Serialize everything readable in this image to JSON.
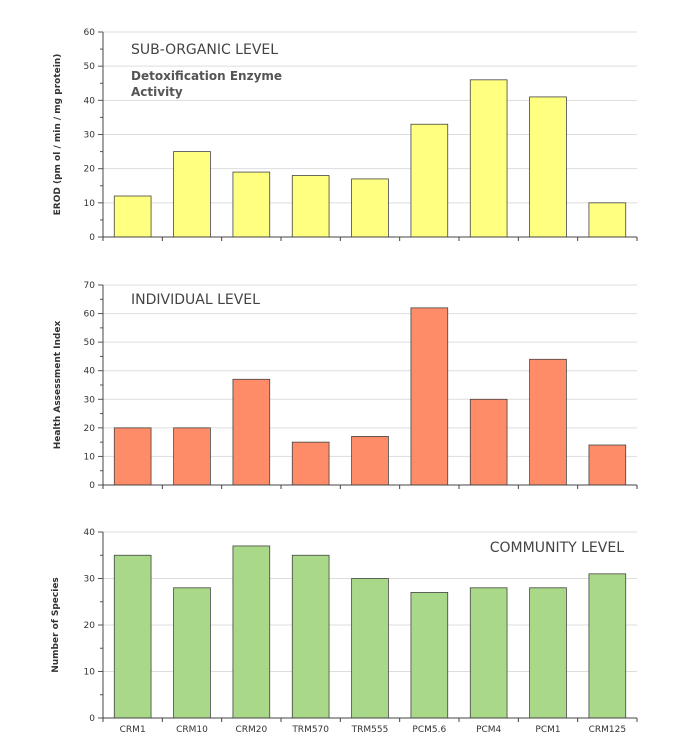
{
  "chart_data": [
    {
      "type": "bar",
      "title": "SUB-ORGANIC LEVEL",
      "subtitle": [
        "Detoxification Enzyme",
        "Activity"
      ],
      "ylabel": "EROD  (pm ol / min / mg protein)",
      "xlabel": "",
      "categories": [
        "CRM1",
        "CRM10",
        "CRM20",
        "TRM570",
        "TRM555",
        "PCM5.6",
        "PCM4",
        "PCM1",
        "CRM125"
      ],
      "values": [
        12,
        25,
        19,
        18,
        17,
        33,
        46,
        41,
        10
      ],
      "ylim": [
        0,
        60
      ],
      "yticks": [
        "0",
        "10",
        "20",
        "30",
        "40",
        "50",
        "60"
      ],
      "grid": true,
      "color": "#ffff80"
    },
    {
      "type": "bar",
      "title": "INDIVIDUAL LEVEL",
      "ylabel": "Health  Assessment  Index",
      "xlabel": "",
      "categories": [
        "CRM1",
        "CRM10",
        "CRM20",
        "TRM570",
        "TRM555",
        "PCM5.6",
        "PCM4",
        "PCM1",
        "CRM125"
      ],
      "values": [
        20,
        20,
        37,
        15,
        17,
        62,
        30,
        44,
        14
      ],
      "ylim": [
        0,
        70
      ],
      "yticks": [
        "0",
        "10",
        "20",
        "30",
        "40",
        "50",
        "60",
        "70"
      ],
      "grid": true,
      "color": "#ff8c69"
    },
    {
      "type": "bar",
      "title": "COMMUNITY LEVEL",
      "ylabel": "Number  of  Species",
      "xlabel": "",
      "categories": [
        "CRM1",
        "CRM10",
        "CRM20",
        "TRM570",
        "TRM555",
        "PCM5.6",
        "PCM4",
        "PCM1",
        "CRM125"
      ],
      "values": [
        35,
        28,
        37,
        35,
        30,
        27,
        28,
        28,
        31
      ],
      "ylim": [
        0,
        40
      ],
      "yticks": [
        "0",
        "10",
        "20",
        "30",
        "40"
      ],
      "grid": true,
      "color": "#a8d888"
    }
  ]
}
